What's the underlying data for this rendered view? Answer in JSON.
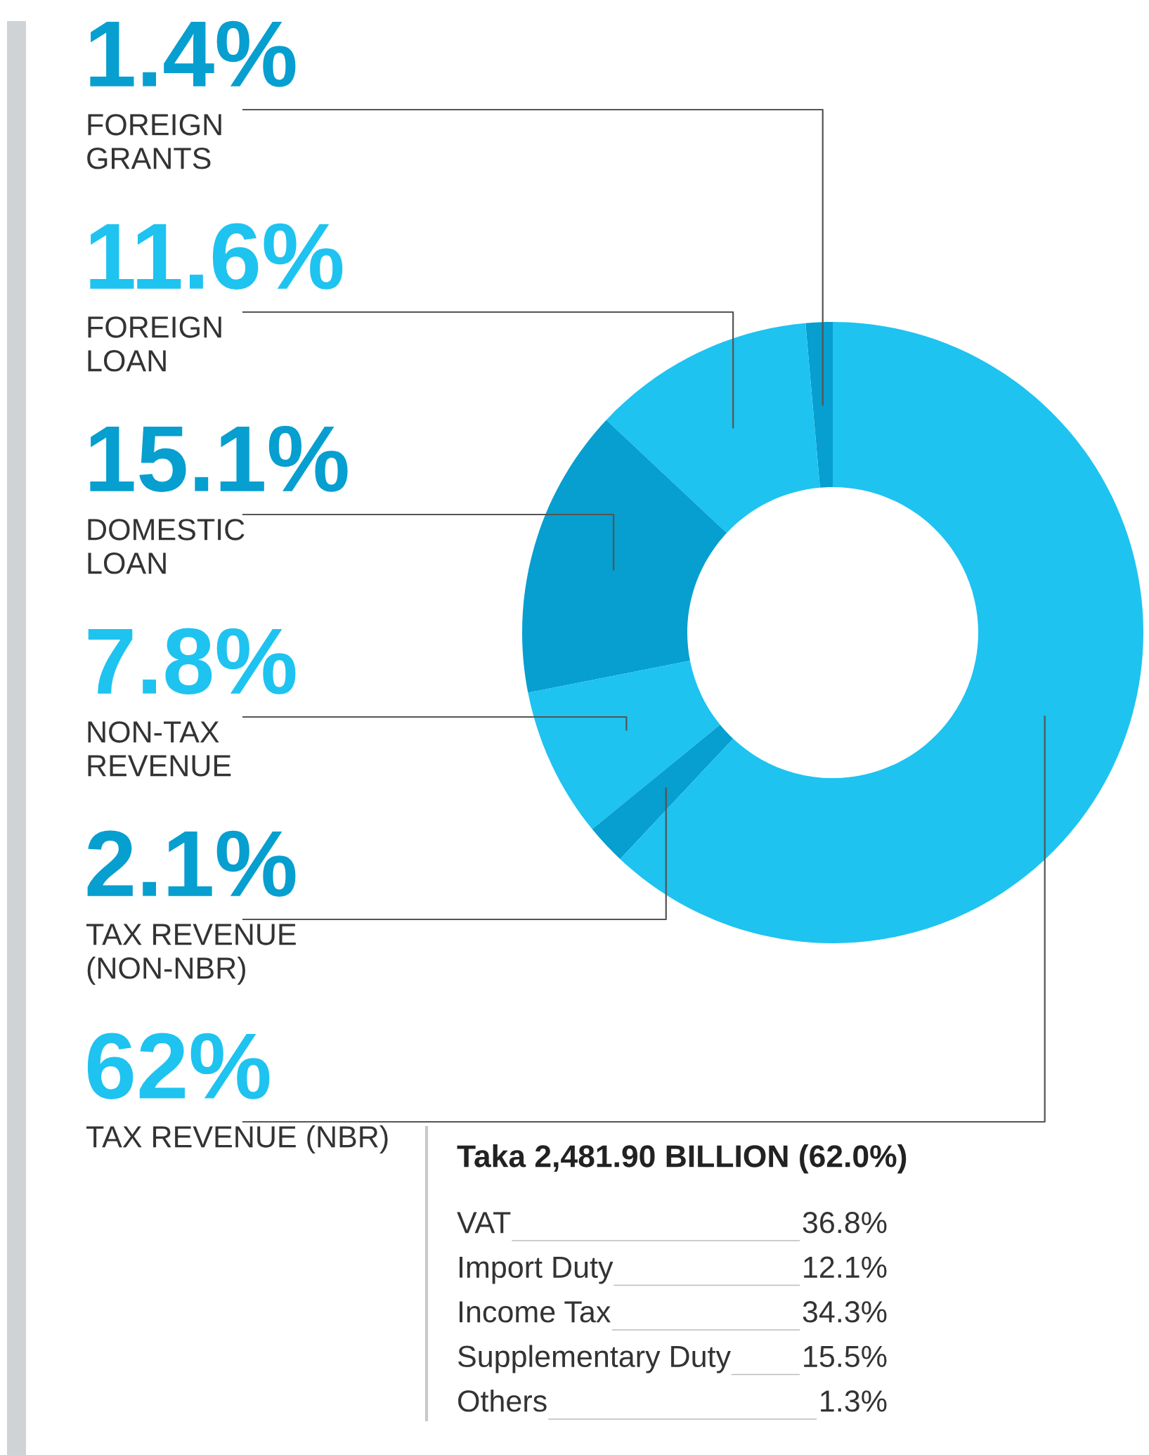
{
  "chart_data": [
    {
      "type": "donut",
      "categories": [
        "FOREIGN\nGRANTS",
        "FOREIGN\nLOAN",
        "DOMESTIC\nLOAN",
        "NON-TAX\nREVENUE",
        "TAX REVENUE\n(NON-NBR)",
        "TAX REVENUE (NBR)"
      ],
      "values": [
        1.4,
        11.6,
        15.1,
        7.8,
        2.1,
        62
      ],
      "colors": [
        "#069fcf",
        "#1ec3f0",
        "#069fcf",
        "#1ec3f0",
        "#069fcf",
        "#1ec3f0"
      ],
      "value_labels": [
        "1.4%",
        "11.6%",
        "15.1%",
        "7.8%",
        "2.1%",
        "62%"
      ]
    },
    {
      "type": "other",
      "title": "Taka 2,481.90 BILLION (62.0%)",
      "categories": [
        "VAT",
        "Import Duty",
        "Income Tax",
        "Supplementary Duty",
        "Others"
      ],
      "values": [
        36.8,
        12.1,
        34.3,
        15.5,
        1.3
      ],
      "value_labels": [
        "36.8%",
        "12.1%",
        "34.3%",
        "15.5%",
        "1.3%"
      ]
    }
  ]
}
